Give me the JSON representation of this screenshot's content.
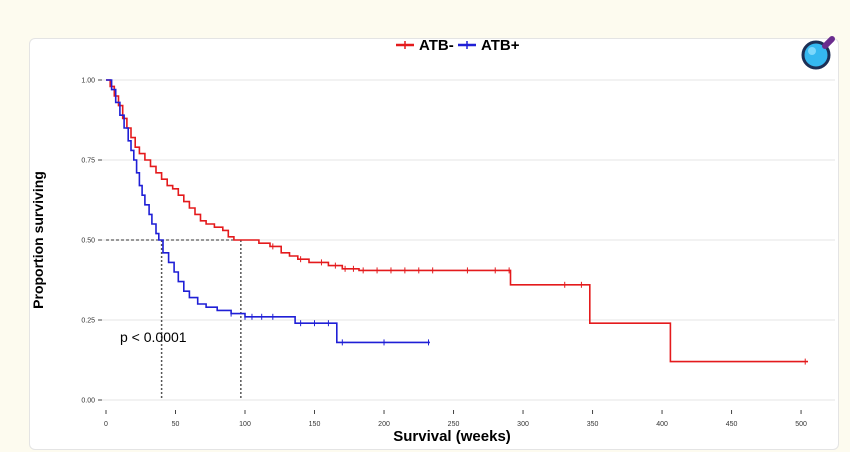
{
  "chart_data": {
    "type": "line",
    "subtype": "kaplan-meier step curve",
    "xlabel": "Survival (weeks)",
    "ylabel": "Proportion surviving",
    "xlim": [
      0,
      505
    ],
    "ylim": [
      0,
      1
    ],
    "x_ticks": [
      "0",
      "50",
      "100",
      "150",
      "200",
      "250",
      "300",
      "350",
      "400",
      "450",
      "500"
    ],
    "y_ticks": [
      "0.00",
      "0.25",
      "0.50",
      "0.75",
      "1.00"
    ],
    "grid": "horizontal",
    "legend_position": "top",
    "annotation": "p < 0.0001",
    "median_reference_lines": [
      {
        "series": "ATB+",
        "median_x": 40,
        "y": 0.5
      },
      {
        "series": "ATB-",
        "median_x": 97,
        "y": 0.5
      }
    ],
    "series": [
      {
        "name": "ATB-",
        "color": "#e41a1c",
        "steps": [
          [
            0,
            1.0
          ],
          [
            3,
            0.98
          ],
          [
            6,
            0.95
          ],
          [
            9,
            0.92
          ],
          [
            12,
            0.88
          ],
          [
            15,
            0.85
          ],
          [
            18,
            0.82
          ],
          [
            21,
            0.79
          ],
          [
            24,
            0.77
          ],
          [
            28,
            0.75
          ],
          [
            32,
            0.73
          ],
          [
            36,
            0.71
          ],
          [
            40,
            0.69
          ],
          [
            44,
            0.67
          ],
          [
            48,
            0.66
          ],
          [
            52,
            0.64
          ],
          [
            56,
            0.62
          ],
          [
            60,
            0.6
          ],
          [
            64,
            0.58
          ],
          [
            68,
            0.56
          ],
          [
            72,
            0.55
          ],
          [
            78,
            0.54
          ],
          [
            84,
            0.53
          ],
          [
            88,
            0.51
          ],
          [
            92,
            0.5
          ],
          [
            110,
            0.49
          ],
          [
            118,
            0.48
          ],
          [
            126,
            0.46
          ],
          [
            132,
            0.45
          ],
          [
            138,
            0.44
          ],
          [
            146,
            0.43
          ],
          [
            160,
            0.42
          ],
          [
            170,
            0.41
          ],
          [
            182,
            0.405
          ],
          [
            291,
            0.36
          ],
          [
            348,
            0.24
          ],
          [
            406,
            0.12
          ],
          [
            505,
            0.12
          ]
        ],
        "censor_x": [
          120,
          140,
          155,
          165,
          172,
          178,
          185,
          195,
          205,
          215,
          225,
          235,
          260,
          280,
          290,
          330,
          342,
          503
        ]
      },
      {
        "name": "ATB+",
        "color": "#1f1fd6",
        "steps": [
          [
            0,
            1.0
          ],
          [
            4,
            0.97
          ],
          [
            7,
            0.93
          ],
          [
            10,
            0.89
          ],
          [
            13,
            0.85
          ],
          [
            16,
            0.81
          ],
          [
            18,
            0.78
          ],
          [
            20,
            0.75
          ],
          [
            22,
            0.71
          ],
          [
            24,
            0.67
          ],
          [
            26,
            0.64
          ],
          [
            28,
            0.61
          ],
          [
            31,
            0.58
          ],
          [
            33,
            0.55
          ],
          [
            36,
            0.52
          ],
          [
            38,
            0.5
          ],
          [
            41,
            0.46
          ],
          [
            45,
            0.43
          ],
          [
            49,
            0.4
          ],
          [
            52,
            0.37
          ],
          [
            56,
            0.34
          ],
          [
            60,
            0.32
          ],
          [
            66,
            0.3
          ],
          [
            72,
            0.29
          ],
          [
            80,
            0.28
          ],
          [
            90,
            0.27
          ],
          [
            100,
            0.26
          ],
          [
            136,
            0.24
          ],
          [
            166,
            0.18
          ],
          [
            233,
            0.18
          ]
        ],
        "censor_x": [
          90,
          100,
          105,
          112,
          120,
          140,
          150,
          160,
          170,
          200,
          232
        ]
      }
    ]
  }
}
